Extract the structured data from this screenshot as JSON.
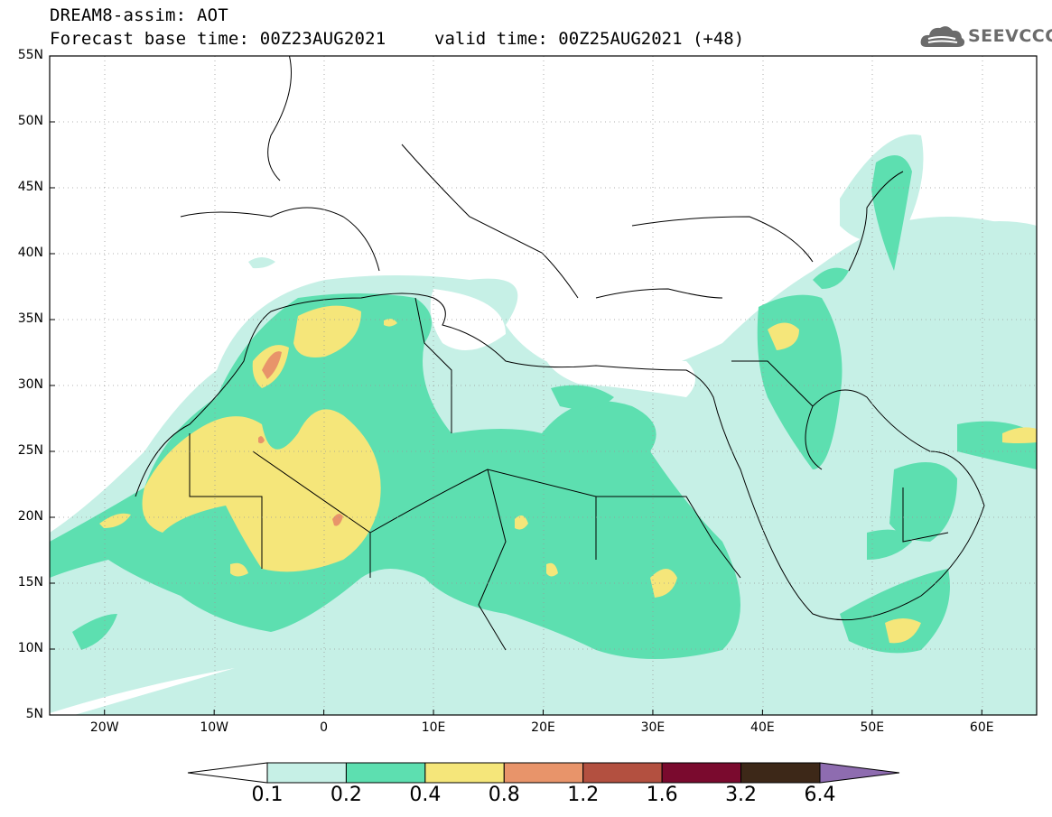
{
  "header": {
    "line1": "DREAM8-assim: AOT",
    "line2": "Forecast base time: 00Z23AUG2021",
    "valid": "valid time: 00Z25AUG2021 (+48)"
  },
  "logo": {
    "text": "SEEVCCC",
    "icon": "cloud-icon",
    "color": "#6b6b6b"
  },
  "map": {
    "lat_labels": [
      "55N",
      "50N",
      "45N",
      "40N",
      "35N",
      "30N",
      "25N",
      "20N",
      "15N",
      "10N",
      "5N"
    ],
    "lon_labels": [
      "20W",
      "10W",
      "0",
      "10E",
      "20E",
      "30E",
      "40E",
      "50E",
      "60E"
    ],
    "lat_range": [
      5,
      55
    ],
    "lon_range": [
      -25,
      65
    ],
    "grid": "dotted"
  },
  "colorbar": {
    "labels": [
      "0.1",
      "0.2",
      "0.4",
      "0.8",
      "1.2",
      "1.6",
      "3.2",
      "6.4"
    ],
    "colors": [
      "#ffffff",
      "#c6f0e6",
      "#5ddfb0",
      "#f5e67a",
      "#e8946a",
      "#b35040",
      "#7a0a2e",
      "#3d2818",
      "#8e6cb0"
    ]
  }
}
